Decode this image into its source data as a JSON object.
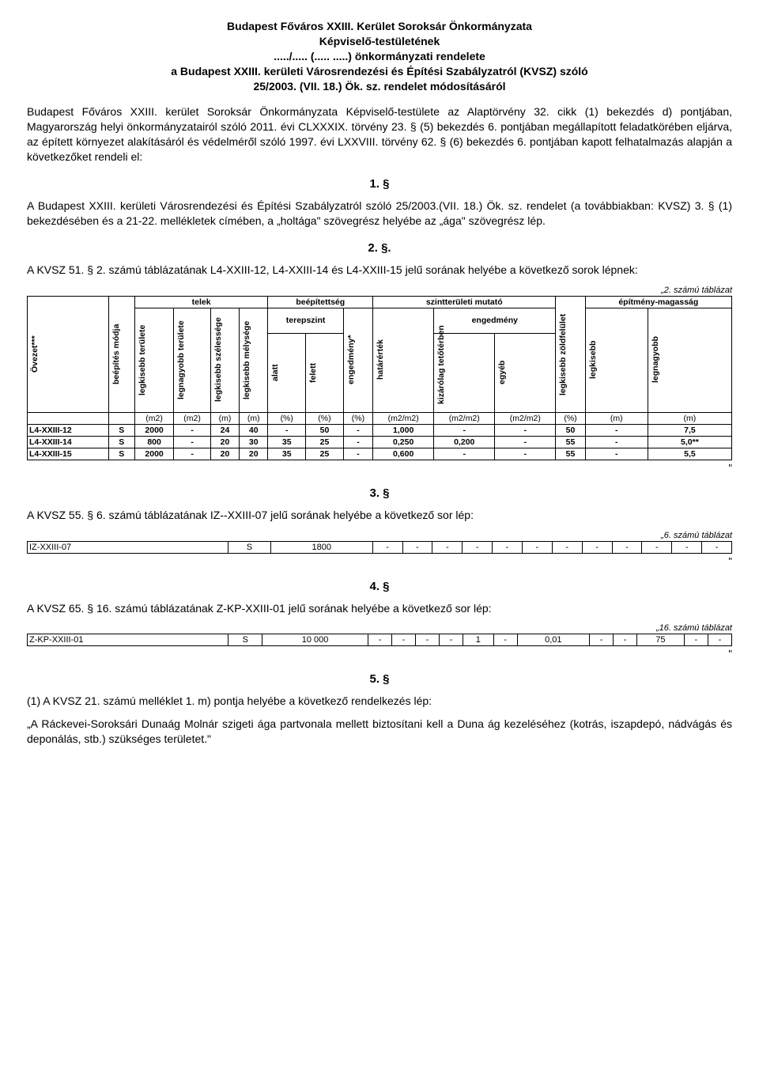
{
  "header": {
    "l1": "Budapest Főváros XXIII. Kerület Soroksár Önkormányzata",
    "l2": "Képviselő-testületének",
    "l3": "...../..... (..... .....) önkormányzati rendelete",
    "l4": "a Budapest XXIII. kerületi Városrendezési és Építési Szabályzatról (KVSZ) szóló",
    "l5": "25/2003. (VII. 18.) Ök. sz. rendelet módosításáról"
  },
  "preamble": "Budapest Főváros XXIII. kerület Soroksár Önkormányzata Képviselő-testülete az Alaptörvény 32. cikk (1) bekezdés d) pontjában, Magyarország helyi önkormányzatairól szóló 2011. évi CLXXXIX. törvény 23. § (5) bekezdés 6. pontjában megállapított feladatkörében eljárva, az épített környezet alakításáról és védelméről szóló 1997. évi LXXVIII. törvény 62. § (6) bekezdés 6. pontjában kapott felhatalmazás alapján a következőket rendeli el:",
  "s1": {
    "num": "1. §",
    "text": "A Budapest XXIII. kerületi Városrendezési és Építési Szabályzatról szóló 25/2003.(VII. 18.) Ök. sz. rendelet (a továbbiakban: KVSZ) 3. § (1) bekezdésében és a 21-22. mellékletek címében, a „holtága\" szövegrész helyébe az „ága\" szövegrész lép."
  },
  "s2": {
    "num": "2. §.",
    "text": "A KVSZ 51. § 2. számú táblázatának L4-XXIII-12, L4-XXIII-14 és L4-XXIII-15 jelű sorának helyébe a következő sorok lépnek:",
    "caption": "„2. számú táblázat",
    "group_headers": [
      "telek",
      "beépítettség",
      "szintterületi mutató",
      "építmény-magasság"
    ],
    "sub_headers": [
      "terepszint",
      "engedmény"
    ],
    "col_verticals": [
      "Övezet***",
      "beépítés módja",
      "legkisebb területe",
      "legnagyobb területe",
      "legkisebb szélessége",
      "legkisebb mélysége",
      "alatt",
      "felett",
      "engedmény*",
      "határérték",
      "kizárólag tetőtérben",
      "egyéb",
      "legkisebb zöldfelület",
      "legkisebb",
      "legnagyobb"
    ],
    "units": [
      "",
      "",
      "(m2)",
      "(m2)",
      "(m)",
      "(m)",
      "(%)",
      "(%)",
      "(%)",
      "(m2/m2)",
      "(m2/m2)",
      "(m2/m2)",
      "(%)",
      "(m)",
      "(m)"
    ],
    "rows": [
      [
        "L4-XXIII-12",
        "S",
        "2000",
        "-",
        "24",
        "40",
        "-",
        "50",
        "-",
        "1,000",
        "-",
        "-",
        "50",
        "-",
        "7,5"
      ],
      [
        "L4-XXIII-14",
        "S",
        "800",
        "-",
        "20",
        "30",
        "35",
        "25",
        "-",
        "0,250",
        "0,200",
        "-",
        "55",
        "-",
        "5,0**"
      ],
      [
        "L4-XXIII-15",
        "S",
        "2000",
        "-",
        "20",
        "20",
        "35",
        "25",
        "-",
        "0,600",
        "-",
        "-",
        "55",
        "-",
        "5,5"
      ]
    ],
    "close": "\""
  },
  "s3": {
    "num": "3. §",
    "text": "A KVSZ 55. § 6. számú táblázatának IZ--XXIII-07 jelű sorának helyébe a következő sor lép:",
    "caption": "„6. számú táblázat",
    "row": [
      "IZ-XXIII-07",
      "S",
      "1800",
      "-",
      "-",
      "-",
      "-",
      "-",
      "-",
      "-",
      "-",
      "-",
      "-",
      "-",
      "-"
    ],
    "close": "\""
  },
  "s4": {
    "num": "4. §",
    "text": "A KVSZ 65. § 16. számú táblázatának Z-KP-XXIII-01 jelű sorának helyébe a következő sor lép:",
    "caption": "„16. számú táblázat",
    "row": [
      "Z-KP-XXIII-01",
      "S",
      "10 000",
      "-",
      "-",
      "-",
      "-",
      "1",
      "-",
      "0,01",
      "-",
      "-",
      "75",
      "-",
      "-"
    ],
    "close": "\""
  },
  "s5": {
    "num": "5. §",
    "text1": "(1) A KVSZ 21. számú melléklet 1. m) pontja helyébe a következő rendelkezés lép:",
    "text2": "„A Ráckevei-Soroksári Dunaág Molnár szigeti ága partvonala mellett biztosítani kell a Duna ág kezeléséhez (kotrás, iszapdepó, nádvágás és deponálás, stb.) szükséges területet.\""
  }
}
